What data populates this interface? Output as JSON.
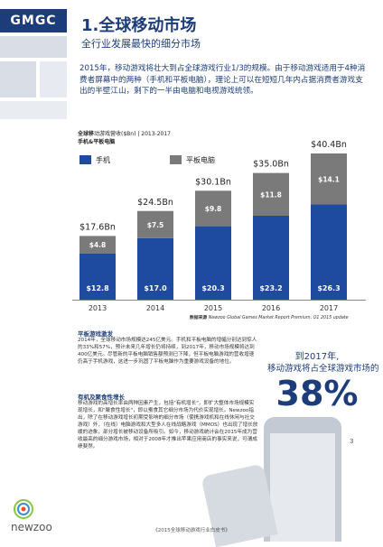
{
  "header": {
    "logo_text": "GMGC",
    "title": "1.全球移动市场",
    "subtitle": "全行业发展最快的细分市场"
  },
  "intro": "2015年，移动游戏将壮大到占全球游戏行业1/3的规模。由于移动游戏适用于4种消费者屏幕中的两种（手机和平板电脑），理论上可以在短短几年内占据消费者游戏支出的半壁江山，剩下的一半由电脑和电视游戏统领。",
  "chart_data": {
    "type": "bar",
    "title_bold": "全球移",
    "title_rest": "动游戏营收($Bn) | 2013-2017",
    "subtitle": "手机&平板电脑",
    "categories": [
      "2013",
      "2014",
      "2015",
      "2016",
      "2017"
    ],
    "series": [
      {
        "name": "手机",
        "values": [
          12.8,
          17.0,
          20.3,
          23.2,
          26.3
        ],
        "value_labels": [
          "$12.8",
          "$17.0",
          "$20.3",
          "$23.2",
          "$26.3"
        ],
        "color": "#1e4aa0"
      },
      {
        "name": "平板电脑",
        "values": [
          4.8,
          7.5,
          9.8,
          11.8,
          14.1
        ],
        "value_labels": [
          "$4.8",
          "$7.5",
          "$9.8",
          "$11.8",
          "$14.1"
        ],
        "color": "#7a7a7a"
      }
    ],
    "totals": [
      "$17.6Bn",
      "$24.5Bn",
      "$30.1Bn",
      "$35.0Bn",
      "$40.4Bn"
    ],
    "ylim": [
      0,
      40.4
    ],
    "legend_position": "top"
  },
  "source": {
    "label": "数据来源",
    "text": "Newzoo Global Games Market Report Premium, Q1 2015 update"
  },
  "sections": [
    {
      "heading": "平板游戏激发",
      "body": "2014年，全球移动市场规模达245亿美元。手机和平板电脑的增幅分别达到惊人的33%和57%，预计未来几年增长仍将持续，到2017年，移动市场规模将达到400亿美元。尽管新的平板电脑销售额预测已下降，但平板电脑游戏的营收增速仍高于手机游戏，这进一步巩固了平板电脑作为重要游戏设备的地位。"
    },
    {
      "heading": "有机及聚食性增长",
      "body": "移动游戏的高增长率由两种因素产生，包括\"有机增长\"，即扩大整体市场规模实现增长，和\"聚食性增长\"，即以蚕食其它细分市场为代价实现增长。Newzoo指出，除了在移动游戏增长初期受影响的细分市场（使携游戏机和在线休闲与社交游戏）外，（在线）电脑游戏和大型多人在线战略游戏（MMOS）也出现了增长放缓的迹象，部分增长被移动设备所吸引。如今，移动游戏统计会在2015年成为营收最高的细分游戏市场，相对于2008年才推出苹果应用商店的事实来说，可谓成绩斐然。"
    }
  ],
  "stat": {
    "line1": "到2017年,",
    "line2": "移动游戏将占全球游戏市场的",
    "big": "38%"
  },
  "brand": "newzoo",
  "page_number": "3",
  "footer": "《2015全球移动游戏行业白皮书》"
}
